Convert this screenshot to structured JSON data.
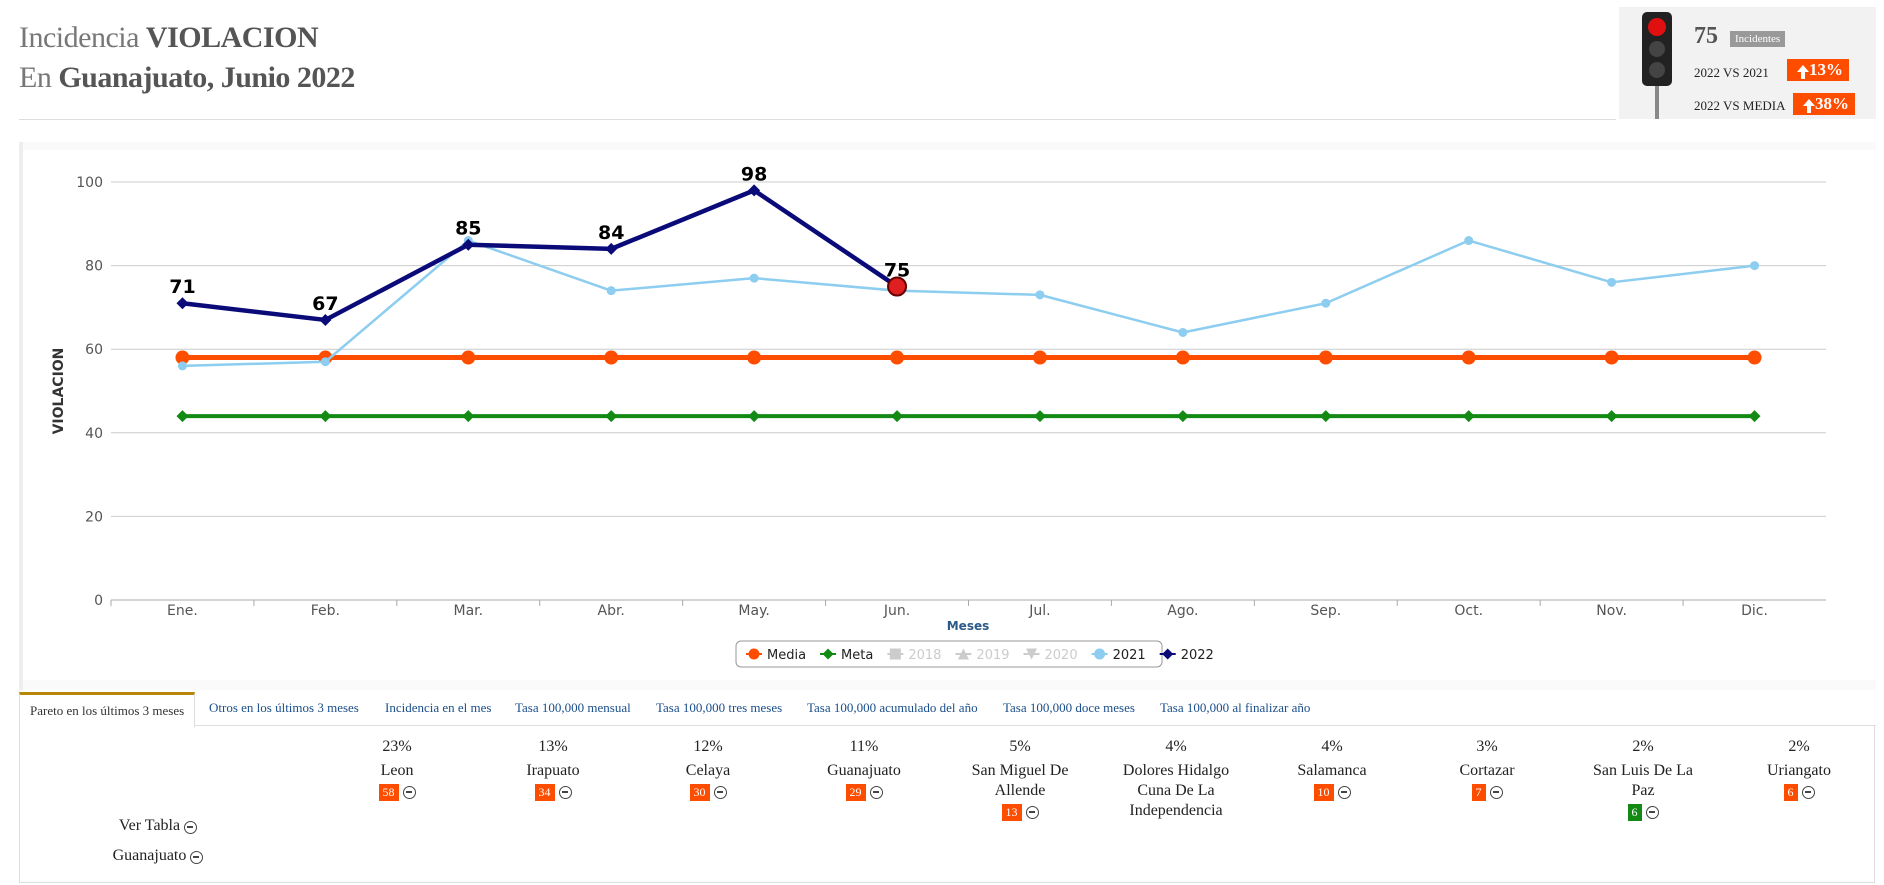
{
  "header": {
    "title_prefix": "Incidencia",
    "title_crime": "VIOLACION",
    "subtitle_prefix": "En",
    "subtitle_place": "Guanajuato,",
    "subtitle_period": "Junio 2022"
  },
  "kpi": {
    "value": 75,
    "unit": "Incidentes",
    "compare_1_label": "2022 VS 2021",
    "compare_1_value": "13%",
    "compare_2_label": "2022 VS MEDIA",
    "compare_2_value": "38%"
  },
  "chart_data": {
    "type": "line",
    "ylabel": "VIOLACION",
    "xlabel": "Meses",
    "categories": [
      "Ene.",
      "Feb.",
      "Mar.",
      "Abr.",
      "May.",
      "Jun.",
      "Jul.",
      "Ago.",
      "Sep.",
      "Oct.",
      "Nov.",
      "Dic."
    ],
    "ylim": [
      0,
      100
    ],
    "yticks": [
      0,
      20,
      40,
      60,
      80,
      100
    ],
    "grid": true,
    "legend": "bottom",
    "series": [
      {
        "name": "Media",
        "color": "#ff4d00",
        "marker": "circle",
        "values": [
          58,
          58,
          58,
          58,
          58,
          58,
          58,
          58,
          58,
          58,
          58,
          58
        ]
      },
      {
        "name": "Meta",
        "color": "#138a13",
        "marker": "diamond",
        "values": [
          44,
          44,
          44,
          44,
          44,
          44,
          44,
          44,
          44,
          44,
          44,
          44
        ]
      },
      {
        "name": "2018",
        "color": "#cccccc",
        "marker": "square",
        "visible": false
      },
      {
        "name": "2019",
        "color": "#cccccc",
        "marker": "triangle",
        "visible": false
      },
      {
        "name": "2020",
        "color": "#cccccc",
        "marker": "triangle-down",
        "visible": false
      },
      {
        "name": "2021",
        "color": "#8ccdf0",
        "marker": "circle",
        "values": [
          56,
          57,
          86,
          74,
          77,
          74,
          73,
          64,
          71,
          86,
          76,
          80
        ]
      },
      {
        "name": "2022",
        "color": "#0a0a78",
        "marker": "diamond",
        "data_labels": true,
        "values": [
          71,
          67,
          85,
          84,
          98,
          75,
          null,
          null,
          null,
          null,
          null,
          null
        ]
      }
    ]
  },
  "tabs": [
    "Pareto en los últimos 3 meses",
    "Otros en los últimos 3 meses",
    "Incidencia en el mes",
    "Tasa 100,000 mensual",
    "Tasa 100,000 tres meses",
    "Tasa 100,000 acumulado del año",
    "Tasa 100,000 doce meses",
    "Tasa 100,000 al finalizar año"
  ],
  "pareto": {
    "link_table": "Ver Tabla",
    "link_place": "Guanajuato",
    "items": [
      {
        "name": "Leon",
        "pct": 23,
        "pct_label": "23%",
        "count": 58,
        "color": "#e0262b"
      },
      {
        "name": "Irapuato",
        "pct": 13,
        "pct_label": "13%",
        "count": 34,
        "color": "#e0262b"
      },
      {
        "name": "Celaya",
        "pct": 12,
        "pct_label": "12%",
        "count": 30,
        "color": "#e0262b"
      },
      {
        "name": "Guanajuato",
        "pct": 11,
        "pct_label": "11%",
        "count": 29,
        "color": "#e0262b"
      },
      {
        "name": "San Miguel De Allende",
        "pct": 5,
        "pct_label": "5%",
        "count": 13,
        "color": "#e0262b"
      },
      {
        "name": "Dolores Hidalgo Cuna De La Independencia",
        "pct": 4,
        "pct_label": "4%",
        "color": "#e0262b"
      },
      {
        "name": "Salamanca",
        "pct": 4,
        "pct_label": "4%",
        "count": 10,
        "color": "#e0262b"
      },
      {
        "name": "Cortazar",
        "pct": 3,
        "pct_label": "3%",
        "count": 7,
        "color": "#e0262b"
      },
      {
        "name": "San Luis De La Paz",
        "pct": 2,
        "pct_label": "2%",
        "count": 6,
        "color": "#138a13"
      },
      {
        "name": "Uriangato",
        "pct": 2,
        "pct_label": "2%",
        "count": 6,
        "color": "#e0262b"
      }
    ]
  }
}
